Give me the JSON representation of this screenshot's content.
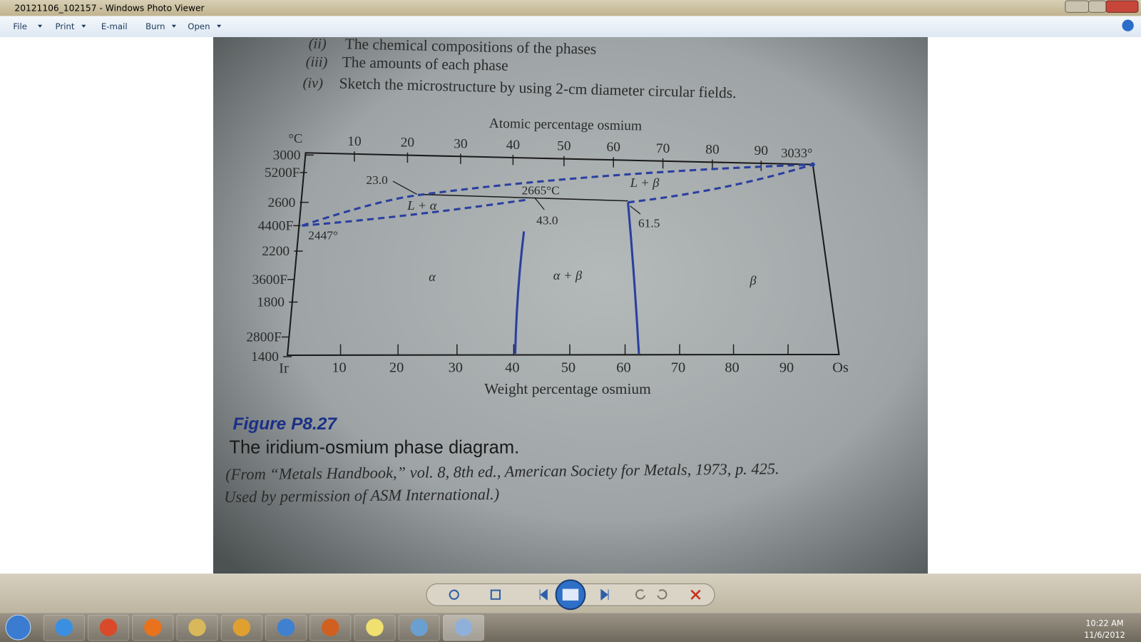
{
  "window": {
    "title": "20121106_102157 - Windows Photo Viewer"
  },
  "menu": [
    "File",
    "Print",
    "E-mail",
    "Burn",
    "Open"
  ],
  "photo": {
    "questions": [
      {
        "marker": "(ii)",
        "text": "The chemical compositions of the phases"
      },
      {
        "marker": "(iii)",
        "text": "The amounts of each phase"
      },
      {
        "marker": "(iv)",
        "text": "Sketch the microstructure by using 2-cm diameter circular fields."
      }
    ],
    "diagram": {
      "top_axis_title": "Atomic percentage osmium",
      "top_ticks": [
        "10",
        "20",
        "30",
        "40",
        "50",
        "60",
        "70",
        "80",
        "90"
      ],
      "bottom_axis_title": "Weight percentage osmium",
      "bottom_ticks": [
        "10",
        "20",
        "30",
        "40",
        "50",
        "60",
        "70",
        "80",
        "90"
      ],
      "left_end": "Ir",
      "right_end": "Os",
      "celsius_unit": "°C",
      "celsius_ticks": [
        "3000",
        "2600",
        "2200",
        "1800",
        "1400"
      ],
      "fahrenheit_ticks": [
        "5200F",
        "4400F",
        "3600F",
        "2800F"
      ],
      "labels": [
        "3033°",
        "23.0",
        "2665°C",
        "L + α",
        "L + β",
        "43.0",
        "61.5",
        "2447°",
        "α",
        "α + β",
        "β"
      ]
    },
    "figure": {
      "number": "Figure P8.27",
      "caption": "The iridium-osmium phase diagram.",
      "source": [
        "(From “Metals Handbook,” vol. 8, 8th ed., American Society for Metals, 1973, p. 425.",
        "Used by permission of ASM International.)"
      ]
    }
  },
  "taskbar": {
    "time": "10:22 AM",
    "date": "11/6/2012"
  }
}
